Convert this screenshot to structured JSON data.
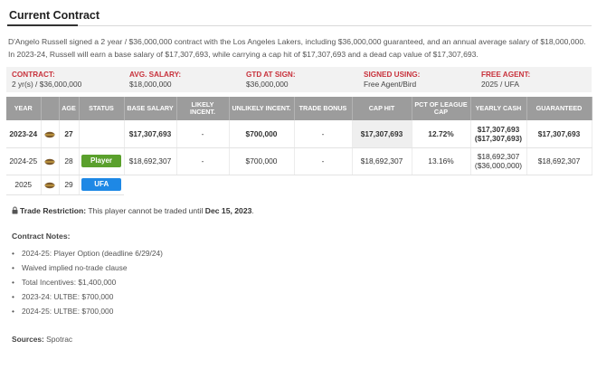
{
  "section": {
    "title": "Current Contract"
  },
  "intro": {
    "line1": "D'Angelo Russell signed a 2 year / $36,000,000 contract with the Los Angeles Lakers, including $36,000,000 guaranteed, and an annual average salary of $18,000,000.",
    "line2": "In 2023-24, Russell will earn a base salary of $17,307,693, while carrying a cap hit of $17,307,693 and a dead cap value of $17,307,693."
  },
  "summary": {
    "contract": {
      "label": "CONTRACT:",
      "value": "2 yr(s) / $36,000,000"
    },
    "avg_salary": {
      "label": "AVG. SALARY:",
      "value": "$18,000,000"
    },
    "gtd_at_sign": {
      "label": "GTD AT SIGN:",
      "value": "$36,000,000"
    },
    "signed_using": {
      "label": "SIGNED USING:",
      "value": "Free Agent/Bird"
    },
    "free_agent": {
      "label": "FREE AGENT:",
      "value": "2025 / UFA"
    }
  },
  "table": {
    "headers": [
      "YEAR",
      "",
      "AGE",
      "STATUS",
      "BASE SALARY",
      "LIKELY INCENT.",
      "UNLIKELY INCENT.",
      "TRADE BONUS",
      "CAP HIT",
      "PCT OF LEAGUE CAP",
      "YEARLY CASH",
      "GUARANTEED"
    ],
    "rows": [
      {
        "year": "2023-24",
        "age": "27",
        "status": "",
        "base_salary": "$17,307,693",
        "likely": "-",
        "unlikely": "$700,000",
        "trade_bonus": "-",
        "cap_hit": "$17,307,693",
        "pct_cap": "12.72%",
        "yearly_cash": "$17,307,693",
        "yearly_cash_cum": "($17,307,693)",
        "guaranteed": "$17,307,693"
      },
      {
        "year": "2024-25",
        "age": "28",
        "status": "Player",
        "base_salary": "$18,692,307",
        "likely": "-",
        "unlikely": "$700,000",
        "trade_bonus": "-",
        "cap_hit": "$18,692,307",
        "pct_cap": "13.16%",
        "yearly_cash": "$18,692,307",
        "yearly_cash_cum": "($36,000,000)",
        "guaranteed": "$18,692,307"
      },
      {
        "year": "2025",
        "age": "29",
        "status": "UFA"
      }
    ]
  },
  "restriction": {
    "label": "Trade Restriction:",
    "text": "This player cannot be traded until",
    "date": "Dec 15, 2023",
    "end": "."
  },
  "notes": {
    "title": "Contract Notes:",
    "items": [
      "2024-25: Player Option (deadline 6/29/24)",
      "Waived implied no-trade clause",
      "Total Incentives: $1,400,000",
      "2023-24: ULTBE: $700,000",
      "2024-25: ULTBE: $700,000"
    ]
  },
  "sources": {
    "label": "Sources:",
    "value": "Spotrac"
  },
  "colors": {
    "label_red": "#c8323c",
    "header_gray": "#9c9c9c",
    "player_green": "#5aa02c",
    "ufa_blue": "#1e88e5"
  }
}
